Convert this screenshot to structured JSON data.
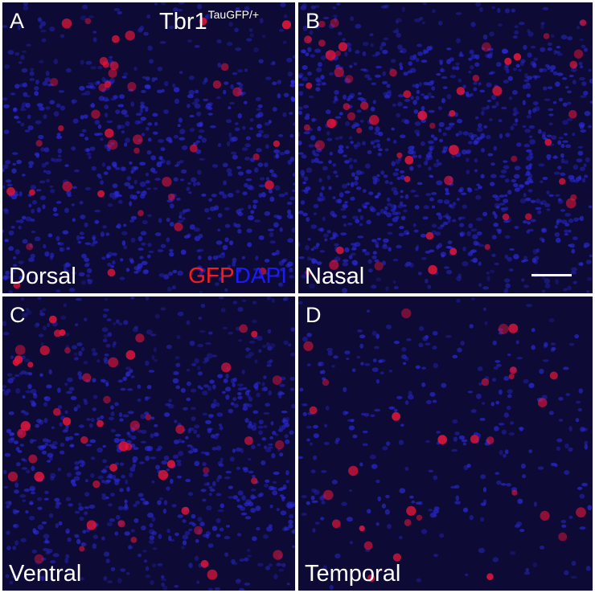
{
  "figure_title": {
    "main": "Tbr1",
    "superscript": "TauGFP/+"
  },
  "stain_legend": {
    "gfp": "GFP",
    "dapi": "DAPI"
  },
  "colors": {
    "gfp": "#ff1a1a",
    "dapi": "#1a1aff",
    "tissue_background": "#0d0a35",
    "panel_border": "#ffffff"
  },
  "panels": [
    {
      "letter": "A",
      "region": "Dorsal"
    },
    {
      "letter": "B",
      "region": "Nasal"
    },
    {
      "letter": "C",
      "region": "Ventral"
    },
    {
      "letter": "D",
      "region": "Temporal"
    }
  ],
  "scale_bar": {
    "shown": true
  }
}
